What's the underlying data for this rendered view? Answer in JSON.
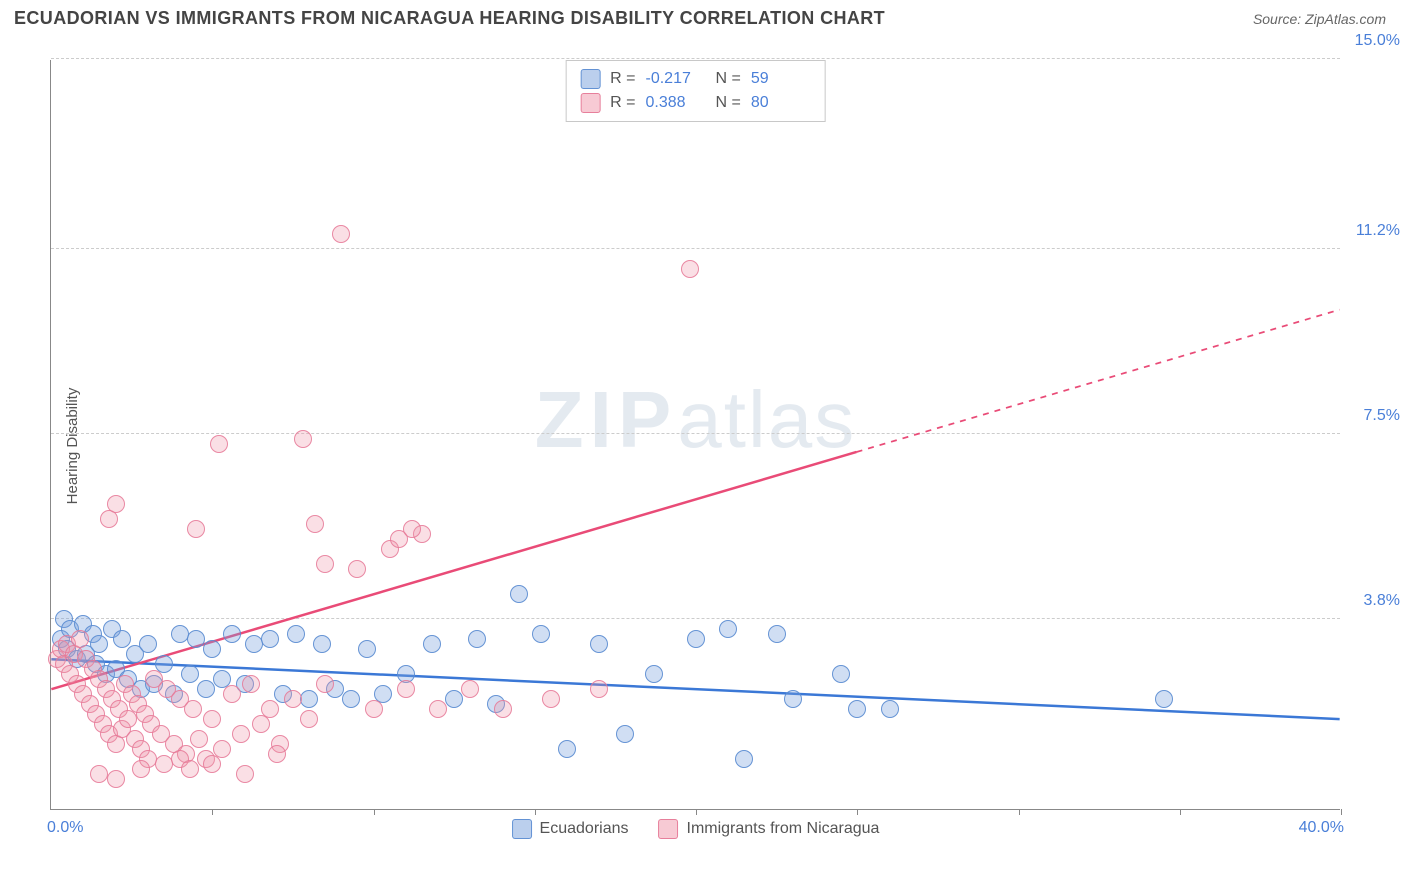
{
  "title": "ECUADORIAN VS IMMIGRANTS FROM NICARAGUA HEARING DISABILITY CORRELATION CHART",
  "source_label": "Source:",
  "source_value": "ZipAtlas.com",
  "ylabel": "Hearing Disability",
  "watermark_a": "ZIP",
  "watermark_b": "atlas",
  "chart": {
    "type": "scatter",
    "xlim": [
      0,
      40
    ],
    "ylim": [
      0,
      15
    ],
    "background_color": "#ffffff",
    "grid_color": "#cccccc",
    "grid_dash": true,
    "axis_color": "#888888",
    "yticks": [
      3.8,
      7.5,
      11.2,
      15.0
    ],
    "ytick_labels": [
      "3.8%",
      "7.5%",
      "11.2%",
      "15.0%"
    ],
    "xtick_positions": [
      5,
      10,
      15,
      20,
      25,
      30,
      35,
      40
    ],
    "x_label_min": "0.0%",
    "x_label_max": "40.0%",
    "label_color": "#4a7fd8",
    "label_fontsize": 16,
    "title_fontsize": 18,
    "title_color": "#444444",
    "point_radius": 9,
    "series": [
      {
        "name": "Ecuadorians",
        "color_fill": "rgba(120,160,220,0.35)",
        "color_stroke": "#5a8cd2",
        "r_label": "R =",
        "r_value": "-0.217",
        "n_label": "N =",
        "n_value": "59",
        "trend": {
          "x1": 0,
          "y1": 3.0,
          "x2": 40,
          "y2": 1.8,
          "stroke": "#3b78d6",
          "width": 2.5,
          "dash_after_x": 40
        },
        "points": [
          [
            0.3,
            3.4
          ],
          [
            0.4,
            3.8
          ],
          [
            0.5,
            3.2
          ],
          [
            0.6,
            3.6
          ],
          [
            0.8,
            3.0
          ],
          [
            1.0,
            3.7
          ],
          [
            1.1,
            3.1
          ],
          [
            1.3,
            3.5
          ],
          [
            1.4,
            2.9
          ],
          [
            1.5,
            3.3
          ],
          [
            1.7,
            2.7
          ],
          [
            1.9,
            3.6
          ],
          [
            2.0,
            2.8
          ],
          [
            2.2,
            3.4
          ],
          [
            2.4,
            2.6
          ],
          [
            2.6,
            3.1
          ],
          [
            2.8,
            2.4
          ],
          [
            3.0,
            3.3
          ],
          [
            3.2,
            2.5
          ],
          [
            3.5,
            2.9
          ],
          [
            3.8,
            2.3
          ],
          [
            4.0,
            3.5
          ],
          [
            4.3,
            2.7
          ],
          [
            4.5,
            3.4
          ],
          [
            4.8,
            2.4
          ],
          [
            5.0,
            3.2
          ],
          [
            5.3,
            2.6
          ],
          [
            5.6,
            3.5
          ],
          [
            6.0,
            2.5
          ],
          [
            6.3,
            3.3
          ],
          [
            6.8,
            3.4
          ],
          [
            7.2,
            2.3
          ],
          [
            7.6,
            3.5
          ],
          [
            8.0,
            2.2
          ],
          [
            8.4,
            3.3
          ],
          [
            8.8,
            2.4
          ],
          [
            9.3,
            2.2
          ],
          [
            9.8,
            3.2
          ],
          [
            10.3,
            2.3
          ],
          [
            11.0,
            2.7
          ],
          [
            11.8,
            3.3
          ],
          [
            12.5,
            2.2
          ],
          [
            13.2,
            3.4
          ],
          [
            13.8,
            2.1
          ],
          [
            14.5,
            4.3
          ],
          [
            15.2,
            3.5
          ],
          [
            16.0,
            1.2
          ],
          [
            17.0,
            3.3
          ],
          [
            17.8,
            1.5
          ],
          [
            18.7,
            2.7
          ],
          [
            20.0,
            3.4
          ],
          [
            21.0,
            3.6
          ],
          [
            21.5,
            1.0
          ],
          [
            22.5,
            3.5
          ],
          [
            23.0,
            2.2
          ],
          [
            24.5,
            2.7
          ],
          [
            25.0,
            2.0
          ],
          [
            26.0,
            2.0
          ],
          [
            34.5,
            2.2
          ]
        ]
      },
      {
        "name": "Immigrants from Nicaragua",
        "color_fill": "rgba(240,150,170,0.30)",
        "color_stroke": "#e67896",
        "r_label": "R =",
        "r_value": "0.388",
        "n_label": "N =",
        "n_value": "80",
        "trend": {
          "x1": 0,
          "y1": 2.4,
          "x2": 40,
          "y2": 10.0,
          "stroke": "#e94b77",
          "width": 2.5,
          "dash_after_x": 25
        },
        "points": [
          [
            0.2,
            3.0
          ],
          [
            0.3,
            3.2
          ],
          [
            0.4,
            2.9
          ],
          [
            0.5,
            3.3
          ],
          [
            0.6,
            2.7
          ],
          [
            0.7,
            3.1
          ],
          [
            0.8,
            2.5
          ],
          [
            0.9,
            3.4
          ],
          [
            1.0,
            2.3
          ],
          [
            1.1,
            3.0
          ],
          [
            1.2,
            2.1
          ],
          [
            1.3,
            2.8
          ],
          [
            1.4,
            1.9
          ],
          [
            1.5,
            2.6
          ],
          [
            1.6,
            1.7
          ],
          [
            1.7,
            2.4
          ],
          [
            1.8,
            1.5
          ],
          [
            1.9,
            2.2
          ],
          [
            2.0,
            1.3
          ],
          [
            2.1,
            2.0
          ],
          [
            2.2,
            1.6
          ],
          [
            2.3,
            2.5
          ],
          [
            2.4,
            1.8
          ],
          [
            2.5,
            2.3
          ],
          [
            2.6,
            1.4
          ],
          [
            2.7,
            2.1
          ],
          [
            2.8,
            1.2
          ],
          [
            2.9,
            1.9
          ],
          [
            3.0,
            1.0
          ],
          [
            3.1,
            1.7
          ],
          [
            3.2,
            2.6
          ],
          [
            3.4,
            1.5
          ],
          [
            3.6,
            2.4
          ],
          [
            3.8,
            1.3
          ],
          [
            4.0,
            2.2
          ],
          [
            4.2,
            1.1
          ],
          [
            4.4,
            2.0
          ],
          [
            4.6,
            1.4
          ],
          [
            4.8,
            1.0
          ],
          [
            5.0,
            1.8
          ],
          [
            5.3,
            1.2
          ],
          [
            5.6,
            2.3
          ],
          [
            5.9,
            1.5
          ],
          [
            6.2,
            2.5
          ],
          [
            6.5,
            1.7
          ],
          [
            6.8,
            2.0
          ],
          [
            7.1,
            1.3
          ],
          [
            7.5,
            2.2
          ],
          [
            8.0,
            1.8
          ],
          [
            8.5,
            2.5
          ],
          [
            9.0,
            11.5
          ],
          [
            9.5,
            4.8
          ],
          [
            10.0,
            2.0
          ],
          [
            10.5,
            5.2
          ],
          [
            11.0,
            2.4
          ],
          [
            11.5,
            5.5
          ],
          [
            12.0,
            2.0
          ],
          [
            13.0,
            2.4
          ],
          [
            14.0,
            2.0
          ],
          [
            15.5,
            2.2
          ],
          [
            17.0,
            2.4
          ],
          [
            19.8,
            10.8
          ],
          [
            1.8,
            5.8
          ],
          [
            2.0,
            6.1
          ],
          [
            4.5,
            5.6
          ],
          [
            5.2,
            7.3
          ],
          [
            7.8,
            7.4
          ],
          [
            8.2,
            5.7
          ],
          [
            8.5,
            4.9
          ],
          [
            10.8,
            5.4
          ],
          [
            11.2,
            5.6
          ],
          [
            4.0,
            1.0
          ],
          [
            4.3,
            0.8
          ],
          [
            5.0,
            0.9
          ],
          [
            6.0,
            0.7
          ],
          [
            7.0,
            1.1
          ],
          [
            3.5,
            0.9
          ],
          [
            2.8,
            0.8
          ],
          [
            2.0,
            0.6
          ],
          [
            1.5,
            0.7
          ]
        ]
      }
    ],
    "bottom_legend": [
      {
        "swatch": "blue",
        "label": "Ecuadorians"
      },
      {
        "swatch": "pink",
        "label": "Immigrants from Nicaragua"
      }
    ]
  }
}
